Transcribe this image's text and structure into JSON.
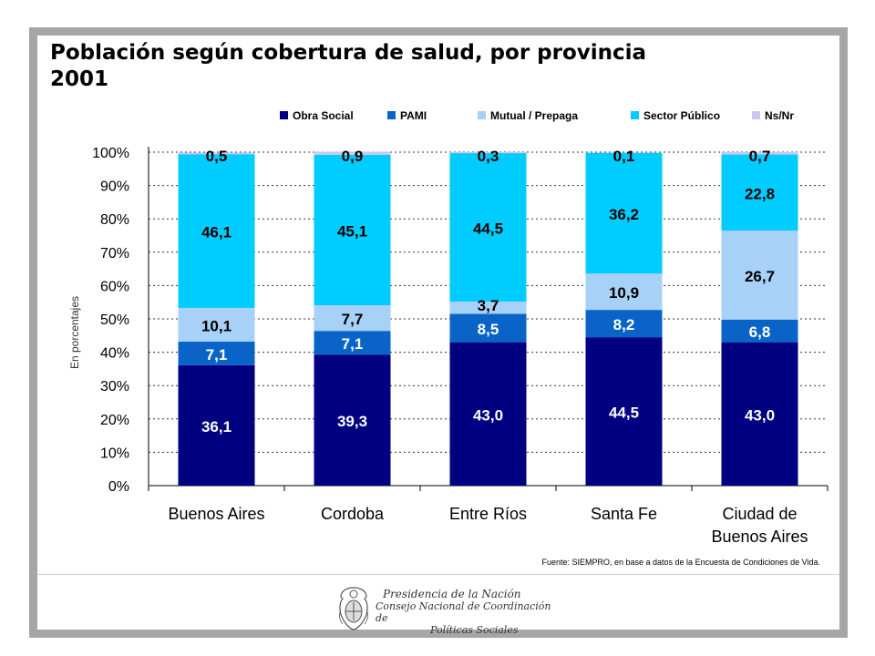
{
  "title": {
    "line1": "Población según cobertura de salud, por provincia",
    "line2": "2001"
  },
  "source": "Fuente: SIEMPRO, en base a datos de la Encuesta de Condiciones de Vida.",
  "footer": {
    "org_line1": "Presidencia de la Nación",
    "org_line2": "Consejo Nacional de Coordinación de",
    "org_line3": "Políticas Sociales"
  },
  "chart_data": {
    "type": "bar",
    "stacked": true,
    "title": "Población según cobertura de salud, por provincia 2001",
    "xlabel": "",
    "ylabel": "En porcentajes",
    "ylim": [
      0,
      100
    ],
    "yticks": [
      "0%",
      "10%",
      "20%",
      "30%",
      "40%",
      "50%",
      "60%",
      "70%",
      "80%",
      "90%",
      "100%"
    ],
    "grid": true,
    "legend_position": "top-right",
    "categories": [
      [
        "Buenos Aires"
      ],
      [
        "Cordoba"
      ],
      [
        "Entre Ríos"
      ],
      [
        "Santa Fe"
      ],
      [
        "Ciudad de",
        "Buenos Aires"
      ]
    ],
    "series": [
      {
        "name": "Obra Social",
        "color": "#000080",
        "label_color": "#ffffff",
        "values": [
          36.1,
          39.3,
          43.0,
          44.5,
          43.0
        ],
        "labels": [
          "36,1",
          "39,3",
          "43,0",
          "44,5",
          "43,0"
        ]
      },
      {
        "name": "PAMI",
        "color": "#0a64c8",
        "label_color": "#ffffff",
        "values": [
          7.1,
          7.1,
          8.5,
          8.2,
          6.8
        ],
        "labels": [
          "7,1",
          "7,1",
          "8,5",
          "8,2",
          "6,8"
        ]
      },
      {
        "name": "Mutual / Prepaga",
        "color": "#a8d1f7",
        "label_color": "#000000",
        "values": [
          10.1,
          7.7,
          3.7,
          10.9,
          26.7
        ],
        "labels": [
          "10,1",
          "7,7",
          "3,7",
          "10,9",
          "26,7"
        ]
      },
      {
        "name": "Sector Público",
        "color": "#00ccff",
        "label_color": "#000000",
        "values": [
          46.1,
          45.1,
          44.5,
          36.2,
          22.8
        ],
        "labels": [
          "46,1",
          "45,1",
          "44,5",
          "36,2",
          "22,8"
        ]
      },
      {
        "name": "Ns/Nr",
        "color": "#c8c8f0",
        "label_color": "#000000",
        "values": [
          0.5,
          0.9,
          0.3,
          0.1,
          0.7
        ],
        "labels": [
          "0,5",
          "0,9",
          "0,3",
          "0,1",
          "0,7"
        ]
      }
    ]
  }
}
